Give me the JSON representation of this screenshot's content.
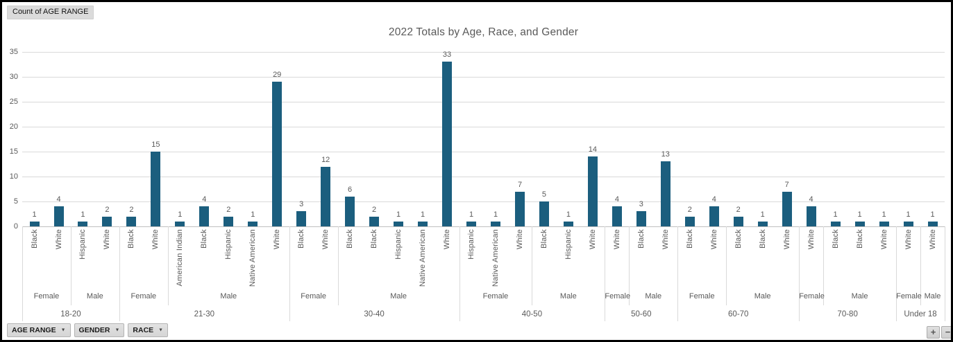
{
  "pivot_value_button": "Count of AGE RANGE",
  "chart_title": "2022 Totals by Age, Race, and Gender",
  "axis_field_buttons": [
    {
      "label": "AGE RANGE"
    },
    {
      "label": "GENDER"
    },
    {
      "label": "RACE"
    }
  ],
  "expand_button": "+",
  "collapse_button": "−",
  "colors": {
    "bar": "#1b5e7e",
    "text_gray": "#595959",
    "gridline": "#d9d9d9",
    "axis_line": "#bfbfbf",
    "button_bg": "#dbdbdb"
  },
  "chart_data": {
    "type": "bar",
    "title": "2022 Totals by Age, Race, and Gender",
    "value_field": "Count of AGE RANGE",
    "legend": "none",
    "grid": true,
    "y_axis": {
      "min": 0,
      "max": 35,
      "step": 5,
      "ticks": [
        0,
        5,
        10,
        15,
        20,
        25,
        30,
        35
      ]
    },
    "x_axis_levels": [
      "RACE",
      "GENDER",
      "AGE RANGE"
    ],
    "groups": [
      {
        "age": "18-20",
        "genders": [
          {
            "gender": "Female",
            "bars": [
              {
                "race": "Black",
                "value": 1
              },
              {
                "race": "White",
                "value": 4
              }
            ]
          },
          {
            "gender": "Male",
            "bars": [
              {
                "race": "Hispanic",
                "value": 1
              },
              {
                "race": "White",
                "value": 2
              }
            ]
          }
        ]
      },
      {
        "age": "21-30",
        "genders": [
          {
            "gender": "Female",
            "bars": [
              {
                "race": "Black",
                "value": 2
              },
              {
                "race": "White",
                "value": 15
              }
            ]
          },
          {
            "gender": "Male",
            "bars": [
              {
                "race": "American Indian",
                "value": 1
              },
              {
                "race": "Black",
                "value": 4
              },
              {
                "race": "Hispanic",
                "value": 2
              },
              {
                "race": "Native American",
                "value": 1
              },
              {
                "race": "White",
                "value": 29
              }
            ]
          }
        ]
      },
      {
        "age": "30-40",
        "genders": [
          {
            "gender": "Female",
            "bars": [
              {
                "race": "Black",
                "value": 3
              },
              {
                "race": "White",
                "value": 12
              }
            ]
          },
          {
            "gender": "Male",
            "bars": [
              {
                "race": "Black",
                "value": 6
              },
              {
                "race": "Black",
                "value": 2
              },
              {
                "race": "Hispanic",
                "value": 1
              },
              {
                "race": "Native American",
                "value": 1
              },
              {
                "race": "White",
                "value": 33
              }
            ]
          }
        ]
      },
      {
        "age": "40-50",
        "genders": [
          {
            "gender": "Female",
            "bars": [
              {
                "race": "Hispanic",
                "value": 1
              },
              {
                "race": "Native American",
                "value": 1
              },
              {
                "race": "White",
                "value": 7
              }
            ]
          },
          {
            "gender": "Male",
            "bars": [
              {
                "race": "Black",
                "value": 5
              },
              {
                "race": "Hispanic",
                "value": 1
              },
              {
                "race": "White",
                "value": 14
              }
            ]
          }
        ]
      },
      {
        "age": "50-60",
        "genders": [
          {
            "gender": "Female",
            "bars": [
              {
                "race": "White",
                "value": 4
              }
            ]
          },
          {
            "gender": "Male",
            "bars": [
              {
                "race": "Black",
                "value": 3
              },
              {
                "race": "White",
                "value": 13
              }
            ]
          }
        ]
      },
      {
        "age": "60-70",
        "genders": [
          {
            "gender": "Female",
            "bars": [
              {
                "race": "Black",
                "value": 2
              },
              {
                "race": "White",
                "value": 4
              }
            ]
          },
          {
            "gender": "Male",
            "bars": [
              {
                "race": "Black",
                "value": 2
              },
              {
                "race": "Black",
                "value": 1
              },
              {
                "race": "White",
                "value": 7
              }
            ]
          }
        ]
      },
      {
        "age": "70-80",
        "genders": [
          {
            "gender": "Female",
            "bars": [
              {
                "race": "White",
                "value": 4
              }
            ]
          },
          {
            "gender": "Male",
            "bars": [
              {
                "race": "Black",
                "value": 1
              },
              {
                "race": "Black",
                "value": 1
              },
              {
                "race": "White",
                "value": 1
              }
            ]
          }
        ]
      },
      {
        "age": "Under 18",
        "genders": [
          {
            "gender": "Female",
            "bars": [
              {
                "race": "White",
                "value": 1
              }
            ]
          },
          {
            "gender": "Male",
            "bars": [
              {
                "race": "White",
                "value": 1
              }
            ]
          }
        ]
      }
    ]
  }
}
